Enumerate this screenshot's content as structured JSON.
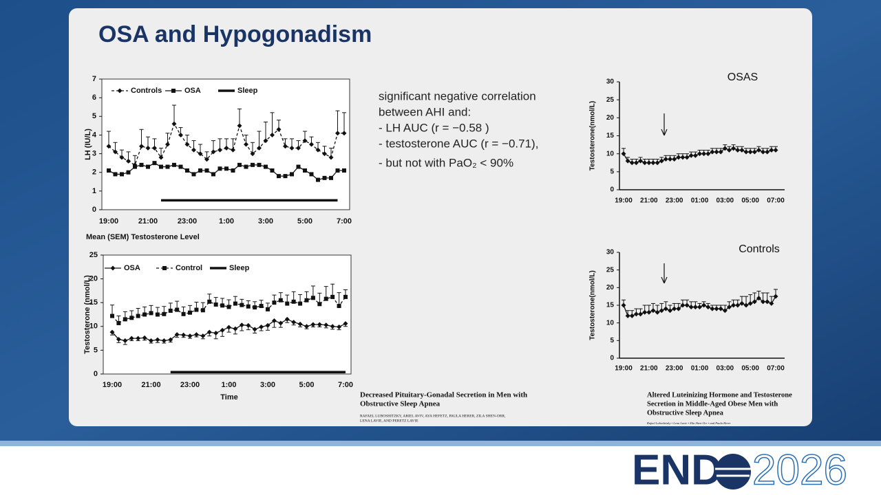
{
  "slide": {
    "title": "OSA and Hypogonadism",
    "bullets": [
      "significant negative correlation",
      "between AHI and:",
      "- LH AUC (r = −0.58 )",
      "- testosterone AUC (r = −0.71),",
      "- but not with PaO₂ < 90%"
    ],
    "citation_left": {
      "title": [
        "Decreased Pituitary-Gonadal Secretion in Men with",
        "Obstructive Sleep Apnea"
      ],
      "authors": [
        "RAFAEL LUBOSHITZKY, ARIEL AVIV, AYA HEFETZ, PAULA HERER, ZILA SHEN-ORR,",
        "LENA LAVIE, AND PERETZ LAVIE"
      ]
    },
    "citation_right": {
      "title": [
        "Altered Luteinizing Hormone and Testosterone",
        "Secretion in Middle-Aged Obese Men with",
        "Obstructive Sleep Apnea"
      ],
      "authors": [
        "Rafael Luboshitzky • Lena Lavie • Zila Shen-Orr • and Paula Herer"
      ]
    },
    "logo": {
      "word": "END",
      "year": "2026"
    }
  },
  "chart_data": [
    {
      "type": "line",
      "y_label": "LH (IU/L)",
      "categories": [
        "19:00",
        null,
        null,
        null,
        null,
        null,
        "21:00",
        null,
        null,
        null,
        null,
        null,
        "23:00",
        null,
        null,
        null,
        null,
        null,
        "1:00",
        null,
        null,
        null,
        null,
        null,
        "3:00",
        null,
        null,
        null,
        null,
        null,
        "5:00",
        null,
        null,
        null,
        null,
        null,
        "7:00"
      ],
      "ylim": [
        0,
        7
      ],
      "yticks": [
        0,
        1,
        2,
        3,
        4,
        5,
        6,
        7
      ],
      "series": [
        {
          "name": "Controls",
          "color": "#111111",
          "marker": "diamond",
          "dash": true,
          "error_direction": "up",
          "values": [
            3.4,
            3.1,
            2.8,
            2.6,
            2.4,
            3.4,
            3.3,
            3.3,
            2.8,
            3.5,
            4.6,
            4.0,
            3.5,
            3.2,
            3.0,
            2.7,
            3.1,
            3.2,
            3.3,
            3.2,
            4.5,
            3.5,
            3.0,
            3.3,
            3.7,
            4.0,
            4.3,
            3.4,
            3.3,
            3.3,
            3.7,
            3.5,
            3.2,
            3.0,
            2.8,
            4.1,
            4.1
          ],
          "errors": [
            0.8,
            0.5,
            0.4,
            0.5,
            0.5,
            0.9,
            0.6,
            0.5,
            0.5,
            0.6,
            1.0,
            0.4,
            0.5,
            0.5,
            0.5,
            0.4,
            0.6,
            0.6,
            0.5,
            0.6,
            0.9,
            0.5,
            0.6,
            0.9,
            1.0,
            1.2,
            0.5,
            0.4,
            0.5,
            0.4,
            0.5,
            0.4,
            0.4,
            0.4,
            0.5,
            1.2,
            1.1
          ]
        },
        {
          "name": "OSA",
          "color": "#111111",
          "marker": "square",
          "values": [
            2.1,
            1.9,
            1.9,
            2.0,
            2.3,
            2.4,
            2.3,
            2.5,
            2.3,
            2.3,
            2.4,
            2.3,
            2.1,
            1.9,
            2.1,
            2.1,
            1.9,
            2.2,
            2.2,
            2.1,
            2.4,
            2.3,
            2.4,
            2.4,
            2.3,
            2.1,
            1.8,
            1.8,
            1.9,
            2.3,
            2.1,
            1.9,
            1.6,
            1.7,
            1.7,
            2.1,
            2.1
          ]
        },
        {
          "name": "Sleep",
          "color": "#111111",
          "marker": "none",
          "width": 3.5,
          "values": [
            null,
            null,
            null,
            null,
            null,
            null,
            null,
            null,
            0.5,
            0.5,
            0.5,
            0.5,
            0.5,
            0.5,
            0.5,
            0.5,
            0.5,
            0.5,
            0.5,
            0.5,
            0.5,
            0.5,
            0.5,
            0.5,
            0.5,
            0.5,
            0.5,
            0.5,
            0.5,
            0.5,
            0.5,
            0.5,
            0.5,
            0.5,
            0.5,
            0.5,
            null
          ]
        }
      ]
    },
    {
      "type": "line",
      "title": "Mean (SEM) Testosterone Level",
      "y_label": "Testosterone (nmol/L)",
      "x_label": "Time",
      "categories": [
        "19:00",
        null,
        null,
        null,
        null,
        null,
        "21:00",
        null,
        null,
        null,
        null,
        null,
        "23:00",
        null,
        null,
        null,
        null,
        null,
        "1:00",
        null,
        null,
        null,
        null,
        null,
        "3:00",
        null,
        null,
        null,
        null,
        null,
        "5:00",
        null,
        null,
        null,
        null,
        null,
        "7:00"
      ],
      "ylim": [
        0,
        25
      ],
      "yticks": [
        0,
        5,
        10,
        15,
        20,
        25
      ],
      "series": [
        {
          "name": "OSA",
          "color": "#111111",
          "marker": "diamond",
          "error_direction": "down",
          "values": [
            8.8,
            7.3,
            7.0,
            7.5,
            7.5,
            7.6,
            7.0,
            7.2,
            7.0,
            7.2,
            8.3,
            8.2,
            8.0,
            8.3,
            8.0,
            8.8,
            8.6,
            9.2,
            9.8,
            9.5,
            10.3,
            10.2,
            9.4,
            9.9,
            10.2,
            11.2,
            10.7,
            11.5,
            10.9,
            10.5,
            10.0,
            10.4,
            10.4,
            10.3,
            10.0,
            9.9,
            10.6
          ],
          "errors": [
            0.6,
            0.7,
            0.8,
            0.5,
            0.5,
            0.5,
            0.5,
            0.6,
            0.5,
            0.5,
            0.6,
            0.5,
            0.5,
            0.5,
            0.6,
            0.8,
            1.2,
            1.3,
            1.0,
            1.1,
            1.2,
            0.9,
            0.8,
            0.8,
            1.0,
            1.4,
            0.9,
            0.7,
            0.6,
            0.6,
            0.5,
            0.5,
            0.5,
            0.6,
            0.6,
            0.6,
            0.6
          ]
        },
        {
          "name": "Control",
          "color": "#111111",
          "marker": "square",
          "dash": true,
          "error_direction": "up",
          "values": [
            12.2,
            10.7,
            11.5,
            11.8,
            12.2,
            12.5,
            12.8,
            12.5,
            12.6,
            13.3,
            13.5,
            12.6,
            12.9,
            13.5,
            13.4,
            15.2,
            14.6,
            14.4,
            14.1,
            14.8,
            14.5,
            14.2,
            14.0,
            14.3,
            13.6,
            15.0,
            15.5,
            14.8,
            15.2,
            14.8,
            15.5,
            16.0,
            14.7,
            15.8,
            16.2,
            14.3,
            16.2
          ],
          "errors": [
            2.3,
            1.5,
            1.6,
            1.5,
            1.6,
            1.6,
            1.6,
            1.5,
            1.6,
            1.6,
            1.8,
            1.5,
            1.5,
            1.6,
            1.6,
            1.6,
            1.5,
            1.5,
            1.5,
            1.5,
            1.2,
            1.2,
            1.2,
            1.2,
            1.3,
            1.6,
            1.6,
            1.8,
            2.1,
            1.9,
            1.8,
            2.5,
            2.3,
            2.6,
            2.7,
            2.8,
            1.5
          ]
        },
        {
          "name": "Sleep",
          "color": "#111111",
          "marker": "none",
          "width": 3.5,
          "values": [
            null,
            null,
            null,
            null,
            null,
            null,
            null,
            null,
            null,
            0.4,
            0.4,
            0.4,
            0.4,
            0.4,
            0.4,
            0.4,
            0.4,
            0.4,
            0.4,
            0.4,
            0.4,
            0.4,
            0.4,
            0.4,
            0.4,
            0.4,
            0.4,
            0.4,
            0.4,
            0.4,
            0.4,
            0.4,
            0.4,
            0.4,
            0.4,
            0.4,
            0.4
          ]
        }
      ]
    },
    {
      "type": "line",
      "title": "OSAS",
      "y_label": "Testosterone(nmol/L)",
      "categories": [
        "19:00",
        null,
        null,
        null,
        null,
        null,
        "21:00",
        null,
        null,
        null,
        null,
        null,
        "23:00",
        null,
        null,
        null,
        null,
        null,
        "01:00",
        null,
        null,
        null,
        null,
        null,
        "03:00",
        null,
        null,
        null,
        null,
        null,
        "05:00",
        null,
        null,
        null,
        null,
        null,
        "07:00"
      ],
      "ylim": [
        0,
        30
      ],
      "yticks": [
        0,
        5,
        10,
        15,
        20,
        25,
        30
      ],
      "series": [
        {
          "color": "#111111",
          "marker": "diamond",
          "error_direction": "up",
          "values": [
            10,
            8,
            7.5,
            7.5,
            8,
            7.5,
            7.5,
            7.5,
            7.5,
            8,
            8.5,
            8.5,
            8.5,
            9,
            9,
            9,
            9.5,
            9.5,
            10,
            10,
            10,
            10.5,
            10.5,
            10.5,
            11.5,
            11,
            11.5,
            11,
            11,
            10.5,
            10.5,
            10.5,
            11,
            10.5,
            10.5,
            11,
            11
          ],
          "errors": [
            1.5,
            1,
            1,
            1,
            1,
            1,
            1,
            1,
            1,
            1,
            1,
            1,
            1,
            1,
            1,
            1,
            1,
            1,
            1,
            1,
            1,
            1,
            1,
            1,
            1,
            1,
            1,
            1,
            1,
            1,
            1,
            1,
            1,
            1,
            1,
            1,
            1
          ]
        }
      ]
    },
    {
      "type": "line",
      "title": "Controls",
      "y_label": "Testosterone(nmol/L)",
      "categories": [
        "19:00",
        null,
        null,
        null,
        null,
        null,
        "21:00",
        null,
        null,
        null,
        null,
        null,
        "23:00",
        null,
        null,
        null,
        null,
        null,
        "01:00",
        null,
        null,
        null,
        null,
        null,
        "03:00",
        null,
        null,
        null,
        null,
        null,
        "05:00",
        null,
        null,
        null,
        null,
        null,
        "07:00"
      ],
      "ylim": [
        0,
        30
      ],
      "yticks": [
        0,
        5,
        10,
        15,
        20,
        25,
        30
      ],
      "series": [
        {
          "color": "#111111",
          "marker": "diamond",
          "error_direction": "up",
          "values": [
            15,
            12,
            12,
            12.5,
            12.5,
            13,
            13,
            13.5,
            13,
            13.5,
            14,
            13.5,
            14,
            14,
            15,
            15,
            14.5,
            14.5,
            14.5,
            15,
            14.5,
            14,
            14,
            14,
            13.5,
            14.5,
            15,
            15,
            15.5,
            15,
            15.5,
            16,
            17,
            16,
            16,
            15.5,
            17.5
          ],
          "errors": [
            1.5,
            1.5,
            1.5,
            1.5,
            1.5,
            2,
            2,
            2,
            2,
            2,
            2,
            1.5,
            1.5,
            1.5,
            1.5,
            1.5,
            1.5,
            1.5,
            1,
            1,
            1,
            1,
            1,
            1,
            1.5,
            1.5,
            1.5,
            1.5,
            2,
            2.5,
            2.5,
            2.5,
            2,
            2.5,
            2.5,
            2,
            2
          ]
        }
      ]
    }
  ]
}
